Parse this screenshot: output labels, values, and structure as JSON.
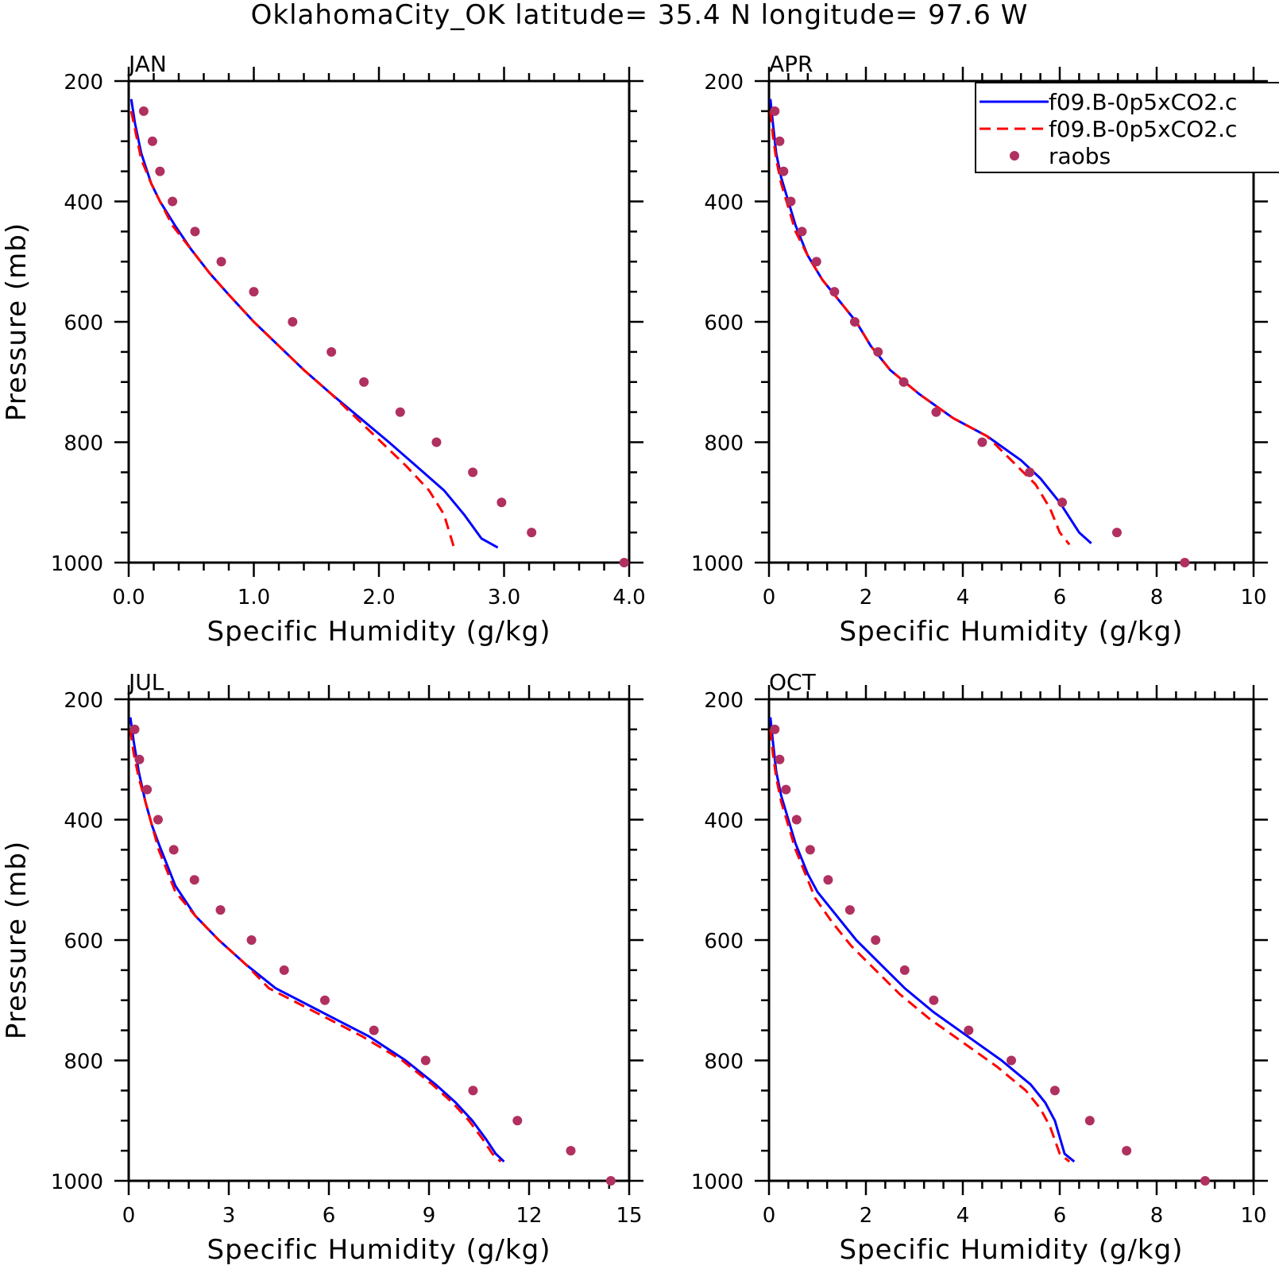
{
  "title": "OklahomaCity_OK   latitude= 35.4 N longitude= 97.6 W",
  "legend": {
    "entries": [
      {
        "label": "f09.B-0p5xCO2.c",
        "style": "solid",
        "color": "#0000ff"
      },
      {
        "label": "f09.B-0p5xCO2.c",
        "style": "dashed",
        "color": "#ff0000"
      },
      {
        "label": "raobs",
        "style": "dot",
        "color": "#b03060"
      }
    ]
  },
  "colors": {
    "series1": "#0000ff",
    "series2": "#ff0000",
    "obs": "#b03060"
  },
  "chart_data": [
    {
      "label": "JAN",
      "type": "line",
      "xlabel": "Specific Humidity (g/kg)",
      "ylabel": "Pressure (mb)",
      "xlim": [
        0,
        4
      ],
      "ylim": [
        200,
        1000
      ],
      "y_inverted": true,
      "xticks": [
        0,
        1,
        2,
        3,
        4
      ],
      "xtick_labels": [
        "0.0",
        "1.0",
        "2.0",
        "3.0",
        "4.0"
      ],
      "yticks": [
        200,
        400,
        600,
        800,
        1000
      ],
      "ytick_labels": [
        "200",
        "400",
        "600",
        "800",
        "1000"
      ],
      "series": [
        {
          "style": "solid",
          "color": "#0000ff",
          "x": [
            0.02,
            0.05,
            0.1,
            0.18,
            0.25,
            0.37,
            0.5,
            0.65,
            0.8,
            1.0,
            1.2,
            1.4,
            1.62,
            1.85,
            2.08,
            2.3,
            2.52,
            2.68,
            2.82,
            2.95
          ],
          "y": [
            230,
            270,
            320,
            370,
            400,
            440,
            480,
            520,
            555,
            600,
            640,
            680,
            720,
            760,
            800,
            840,
            880,
            920,
            960,
            975
          ]
        },
        {
          "style": "dashed",
          "color": "#ff0000",
          "x": [
            0.02,
            0.05,
            0.1,
            0.18,
            0.25,
            0.35,
            0.5,
            0.65,
            0.8,
            1.0,
            1.2,
            1.4,
            1.62,
            1.82,
            2.02,
            2.22,
            2.4,
            2.52,
            2.6
          ],
          "y": [
            250,
            280,
            330,
            370,
            400,
            440,
            480,
            520,
            555,
            600,
            640,
            680,
            720,
            760,
            800,
            840,
            880,
            920,
            975
          ]
        }
      ],
      "obs": {
        "color": "#b03060",
        "x": [
          0.12,
          0.19,
          0.25,
          0.35,
          0.53,
          0.74,
          1.0,
          1.31,
          1.62,
          1.88,
          2.17,
          2.46,
          2.75,
          2.98,
          3.22,
          3.96
        ],
        "y": [
          250,
          300,
          350,
          400,
          450,
          500,
          550,
          600,
          650,
          700,
          750,
          800,
          850,
          900,
          950,
          1000
        ]
      }
    },
    {
      "label": "APR",
      "type": "line",
      "xlabel": "Specific Humidity (g/kg)",
      "ylabel": "",
      "xlim": [
        0,
        10
      ],
      "ylim": [
        200,
        1000
      ],
      "y_inverted": true,
      "xticks": [
        0,
        2,
        4,
        6,
        8,
        10
      ],
      "xtick_labels": [
        "0",
        "2",
        "4",
        "6",
        "8",
        "10"
      ],
      "yticks": [
        200,
        400,
        600,
        800,
        1000
      ],
      "ytick_labels": [
        "200",
        "400",
        "600",
        "800",
        "1000"
      ],
      "series": [
        {
          "style": "solid",
          "color": "#0000ff",
          "x": [
            0.03,
            0.08,
            0.15,
            0.25,
            0.4,
            0.55,
            0.8,
            1.1,
            1.4,
            1.8,
            2.1,
            2.5,
            3.1,
            3.8,
            4.5,
            5.2,
            5.6,
            6.0,
            6.4,
            6.65
          ],
          "y": [
            230,
            270,
            320,
            360,
            400,
            440,
            490,
            530,
            560,
            600,
            640,
            680,
            720,
            760,
            790,
            830,
            860,
            900,
            950,
            968
          ]
        },
        {
          "style": "dashed",
          "color": "#ff0000",
          "x": [
            0.03,
            0.08,
            0.15,
            0.25,
            0.4,
            0.55,
            0.8,
            1.1,
            1.4,
            1.8,
            2.1,
            2.5,
            3.1,
            3.8,
            4.5,
            5.0,
            5.5,
            5.8,
            6.0,
            6.2
          ],
          "y": [
            250,
            290,
            330,
            370,
            410,
            450,
            490,
            530,
            560,
            600,
            640,
            680,
            720,
            760,
            790,
            830,
            870,
            910,
            950,
            970
          ]
        }
      ],
      "obs": {
        "color": "#b03060",
        "x": [
          0.12,
          0.22,
          0.3,
          0.45,
          0.68,
          0.98,
          1.35,
          1.77,
          2.25,
          2.78,
          3.45,
          4.4,
          5.38,
          6.05,
          7.18,
          8.58
        ],
        "y": [
          250,
          300,
          350,
          400,
          450,
          500,
          550,
          600,
          650,
          700,
          750,
          800,
          850,
          900,
          950,
          1000
        ]
      }
    },
    {
      "label": "JUL",
      "type": "line",
      "xlabel": "Specific Humidity (g/kg)",
      "ylabel": "Pressure (mb)",
      "xlim": [
        0,
        15
      ],
      "ylim": [
        200,
        1000
      ],
      "y_inverted": true,
      "xticks": [
        0,
        3,
        6,
        9,
        12,
        15
      ],
      "xtick_labels": [
        "0",
        "3",
        "6",
        "9",
        "12",
        "15"
      ],
      "yticks": [
        200,
        400,
        600,
        800,
        1000
      ],
      "ytick_labels": [
        "200",
        "400",
        "600",
        "800",
        "1000"
      ],
      "series": [
        {
          "style": "solid",
          "color": "#0000ff",
          "x": [
            0.05,
            0.15,
            0.3,
            0.5,
            0.7,
            0.9,
            1.4,
            2.0,
            2.7,
            3.5,
            4.4,
            5.8,
            7.2,
            8.3,
            9.2,
            9.8,
            10.3,
            10.7,
            11.0,
            11.25
          ],
          "y": [
            230,
            270,
            320,
            370,
            410,
            440,
            510,
            560,
            600,
            640,
            680,
            720,
            760,
            800,
            840,
            870,
            900,
            930,
            955,
            968
          ]
        },
        {
          "style": "dashed",
          "color": "#ff0000",
          "x": [
            0.05,
            0.15,
            0.3,
            0.5,
            0.7,
            0.9,
            1.4,
            2.0,
            2.7,
            3.5,
            4.2,
            5.6,
            7.0,
            8.2,
            9.1,
            9.7,
            10.2,
            10.6,
            10.9,
            11.15
          ],
          "y": [
            250,
            290,
            330,
            370,
            410,
            450,
            520,
            560,
            600,
            640,
            680,
            720,
            760,
            800,
            840,
            870,
            900,
            930,
            955,
            968
          ]
        }
      ],
      "obs": {
        "color": "#b03060",
        "x": [
          0.18,
          0.32,
          0.55,
          0.88,
          1.35,
          1.97,
          2.75,
          3.68,
          4.66,
          5.88,
          7.35,
          8.9,
          10.32,
          11.65,
          13.25,
          14.45
        ],
        "y": [
          250,
          300,
          350,
          400,
          450,
          500,
          550,
          600,
          650,
          700,
          750,
          800,
          850,
          900,
          950,
          1000
        ]
      }
    },
    {
      "label": "OCT",
      "type": "line",
      "xlabel": "Specific Humidity (g/kg)",
      "ylabel": "",
      "xlim": [
        0,
        10
      ],
      "ylim": [
        200,
        1000
      ],
      "y_inverted": true,
      "xticks": [
        0,
        2,
        4,
        6,
        8,
        10
      ],
      "xtick_labels": [
        "0",
        "2",
        "4",
        "6",
        "8",
        "10"
      ],
      "yticks": [
        200,
        400,
        600,
        800,
        1000
      ],
      "ytick_labels": [
        "200",
        "400",
        "600",
        "800",
        "1000"
      ],
      "series": [
        {
          "style": "solid",
          "color": "#0000ff",
          "x": [
            0.03,
            0.08,
            0.15,
            0.25,
            0.4,
            0.55,
            0.8,
            1.0,
            1.4,
            1.8,
            2.3,
            2.8,
            3.4,
            4.1,
            4.8,
            5.4,
            5.7,
            5.9,
            6.1,
            6.3
          ],
          "y": [
            230,
            270,
            320,
            360,
            400,
            440,
            490,
            520,
            560,
            600,
            640,
            680,
            720,
            760,
            800,
            840,
            870,
            900,
            955,
            968
          ]
        },
        {
          "style": "dashed",
          "color": "#ff0000",
          "x": [
            0.03,
            0.08,
            0.15,
            0.25,
            0.4,
            0.55,
            0.75,
            0.95,
            1.3,
            1.7,
            2.2,
            2.7,
            3.3,
            4.0,
            4.7,
            5.3,
            5.6,
            5.8,
            6.0,
            6.2
          ],
          "y": [
            250,
            290,
            330,
            370,
            410,
            450,
            490,
            530,
            570,
            610,
            650,
            690,
            730,
            770,
            810,
            850,
            880,
            910,
            955,
            968
          ]
        }
      ],
      "obs": {
        "color": "#b03060",
        "x": [
          0.12,
          0.22,
          0.35,
          0.57,
          0.85,
          1.22,
          1.67,
          2.2,
          2.8,
          3.4,
          4.12,
          5.0,
          5.9,
          6.62,
          7.38,
          9.0
        ],
        "y": [
          250,
          300,
          350,
          400,
          450,
          500,
          550,
          600,
          650,
          700,
          750,
          800,
          850,
          900,
          950,
          1000
        ]
      }
    }
  ]
}
